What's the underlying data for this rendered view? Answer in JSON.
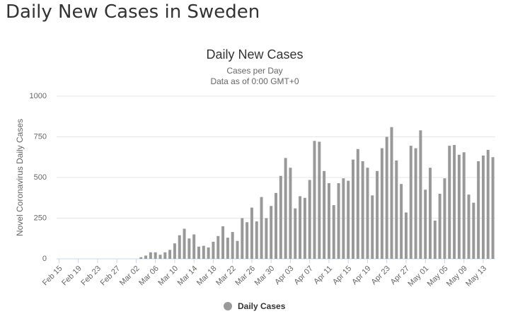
{
  "page_title": "Daily New Cases in Sweden",
  "chart_data": {
    "type": "bar",
    "title": "Daily New Cases",
    "subtitle": [
      "Cases per Day",
      "Data as of 0:00 GMT+0"
    ],
    "y_label": "Novel Coronavirus Daily Cases",
    "categories": [
      "Feb 15",
      null,
      null,
      null,
      "Feb 19",
      null,
      null,
      null,
      "Feb 23",
      null,
      null,
      null,
      "Feb 27",
      null,
      null,
      null,
      "Mar 02",
      null,
      null,
      null,
      "Mar 06",
      null,
      null,
      null,
      "Mar 10",
      null,
      null,
      null,
      "Mar 14",
      null,
      null,
      null,
      "Mar 18",
      null,
      null,
      null,
      "Mar 22",
      null,
      null,
      null,
      "Mar 26",
      null,
      null,
      null,
      "Mar 30",
      null,
      null,
      null,
      "Apr 03",
      null,
      null,
      null,
      "Apr 07",
      null,
      null,
      null,
      "Apr 11",
      null,
      null,
      null,
      "Apr 15",
      null,
      null,
      null,
      "Apr 19",
      null,
      null,
      null,
      "Apr 23",
      null,
      null,
      null,
      "Apr 27",
      null,
      null,
      null,
      "May 01",
      null,
      null,
      null,
      "May 05",
      null,
      null,
      null,
      "May 09",
      null,
      null,
      null,
      "May 13",
      null,
      null
    ],
    "series": [
      {
        "name": "Daily Cases",
        "color": "#999999",
        "values": [
          0,
          0,
          0,
          0,
          0,
          0,
          0,
          0,
          0,
          0,
          0,
          0,
          0,
          0,
          0,
          0,
          0,
          10,
          20,
          40,
          40,
          25,
          40,
          55,
          95,
          145,
          185,
          125,
          150,
          75,
          80,
          70,
          105,
          140,
          200,
          130,
          165,
          110,
          250,
          225,
          315,
          230,
          380,
          250,
          325,
          405,
          510,
          620,
          560,
          310,
          385,
          375,
          485,
          725,
          720,
          540,
          465,
          330,
          465,
          495,
          480,
          610,
          675,
          600,
          560,
          390,
          540,
          680,
          750,
          810,
          605,
          460,
          285,
          695,
          680,
          790,
          425,
          560,
          235,
          400,
          495,
          695,
          700,
          640,
          655,
          395,
          345,
          600,
          635,
          670,
          625
        ]
      }
    ],
    "ylim": [
      0,
      1000
    ],
    "yticks": [
      0,
      250,
      500,
      750,
      1000
    ],
    "grid": true
  }
}
